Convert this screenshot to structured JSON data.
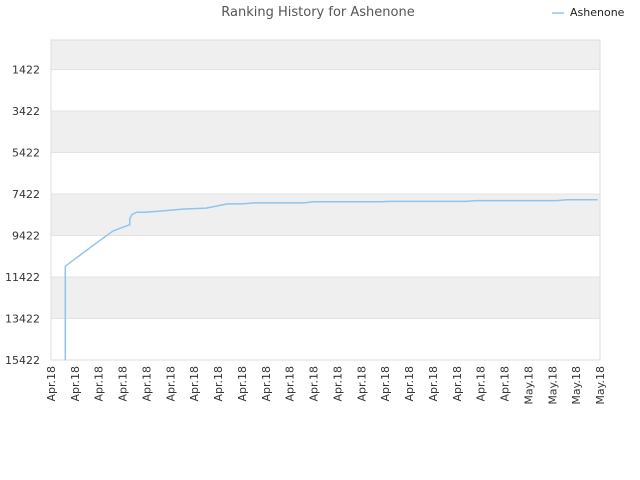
{
  "chart_data": {
    "type": "line",
    "title": "Ranking History for Ashenone",
    "xlabel": "",
    "ylabel": "",
    "y_inverted": true,
    "ylim": [
      15422,
      0
    ],
    "y_ticks": [
      1422,
      3422,
      5422,
      7422,
      9422,
      11422,
      13422,
      15422
    ],
    "x_tick_labels": [
      "Apr.18",
      "Apr.18",
      "Apr.18",
      "Apr.18",
      "Apr.18",
      "Apr.18",
      "Apr.18",
      "Apr.18",
      "Apr.18",
      "Apr.18",
      "Apr.18",
      "Apr.18",
      "Apr.18",
      "Apr.18",
      "Apr.18",
      "Apr.18",
      "Apr.18",
      "Apr.18",
      "Apr.18",
      "Apr.18",
      "May.18",
      "May.18",
      "May.18",
      "May.18"
    ],
    "grid": true,
    "legend_position": "top-right",
    "series": [
      {
        "name": "Ashenone",
        "color": "#90c4ee",
        "x": [
          0.6,
          0.6,
          1.3,
          2.0,
          2.6,
          3.3,
          3.3,
          3.4,
          3.6,
          3.9,
          4.5,
          5.5,
          6.5,
          7.4,
          8.0,
          8.5,
          9.5,
          10.6,
          11.0,
          13.8,
          14.2,
          17.4,
          17.8,
          21.2,
          21.6,
          22.9
        ],
        "y": [
          15422,
          10900,
          10300,
          9700,
          9200,
          8900,
          8600,
          8400,
          8300,
          8300,
          8250,
          8150,
          8100,
          7900,
          7900,
          7850,
          7850,
          7850,
          7800,
          7800,
          7780,
          7780,
          7740,
          7740,
          7700,
          7700
        ]
      }
    ]
  }
}
